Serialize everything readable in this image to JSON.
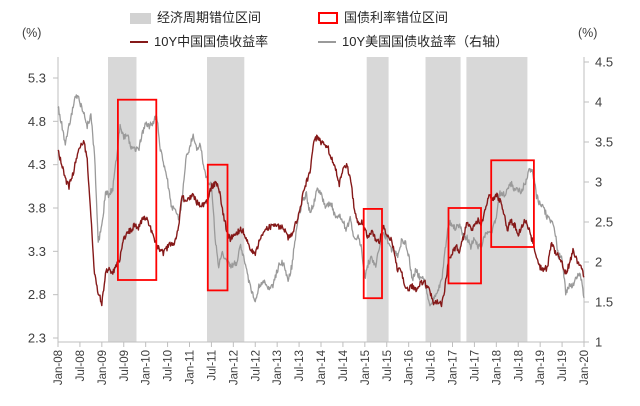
{
  "header": {
    "left_unit": "(%)",
    "right_unit": "(%)"
  },
  "legend": {
    "band_label": "经济周期错位区间",
    "box_label": "国债利率错位区间",
    "china_label": "10Y中国国债收益率",
    "us_label": "10Y美国国债收益率（右轴）"
  },
  "chart_data": {
    "type": "line",
    "title": "",
    "x_start": "Jan-08",
    "x_end": "Jan-20",
    "x_tick_labels": [
      "Jan-08",
      "Jul-08",
      "Jan-09",
      "Jul-09",
      "Jan-10",
      "Jul-10",
      "Jan-11",
      "Jul-11",
      "Jan-12",
      "Jul-12",
      "Jan-13",
      "Jul-13",
      "Jan-14",
      "Jul-14",
      "Jan-15",
      "Jul-15",
      "Jan-16",
      "Jul-16",
      "Jan-17",
      "Jul-17",
      "Jan-18",
      "Jul-18",
      "Jan-19",
      "Jul-19",
      "Jan-20"
    ],
    "months_per_tick": 6,
    "left_axis": {
      "unit": "(%)",
      "min": 2.3,
      "max": 5.3,
      "ticks": [
        5.3,
        4.8,
        4.3,
        3.8,
        3.3,
        2.8,
        2.3
      ]
    },
    "right_axis": {
      "unit": "(%)",
      "min": 1.0,
      "max": 4.5,
      "ticks": [
        4.5,
        4.0,
        3.5,
        3.0,
        2.5,
        2.0,
        1.5,
        1.0
      ]
    },
    "grid": false,
    "legend_position": "top",
    "series": [
      {
        "name": "10Y美国国债收益率（右轴）",
        "axis": "right",
        "color": "#9A9A9A",
        "width": 1.3,
        "monthly_values": [
          3.95,
          3.72,
          3.48,
          3.7,
          3.9,
          4.1,
          4.0,
          3.86,
          3.7,
          3.82,
          3.35,
          2.25,
          2.45,
          2.86,
          2.84,
          2.92,
          3.3,
          3.72,
          3.55,
          3.6,
          3.42,
          3.4,
          3.4,
          3.6,
          3.72,
          3.7,
          3.74,
          3.85,
          3.42,
          3.2,
          3.0,
          2.7,
          2.65,
          2.55,
          2.76,
          3.3,
          3.4,
          3.6,
          3.42,
          3.46,
          3.16,
          3.0,
          3.0,
          2.3,
          1.95,
          2.15,
          2.0,
          1.96,
          1.96,
          2.0,
          2.2,
          2.04,
          1.8,
          1.62,
          1.5,
          1.7,
          1.72,
          1.75,
          1.64,
          1.72,
          1.9,
          2.0,
          1.95,
          1.75,
          1.95,
          2.3,
          2.6,
          2.75,
          2.85,
          2.6,
          2.74,
          2.9,
          2.86,
          2.7,
          2.72,
          2.7,
          2.55,
          2.6,
          2.52,
          2.4,
          2.55,
          2.3,
          2.32,
          2.2,
          1.8,
          2.0,
          2.05,
          1.94,
          2.2,
          2.36,
          2.3,
          2.16,
          2.16,
          2.06,
          2.26,
          2.25,
          2.08,
          1.78,
          1.9,
          1.8,
          1.8,
          1.64,
          1.45,
          1.54,
          1.64,
          1.76,
          2.14,
          2.5,
          2.44,
          2.42,
          2.48,
          2.3,
          2.3,
          2.2,
          2.3,
          2.2,
          2.2,
          2.35,
          2.36,
          2.4,
          2.58,
          2.86,
          2.84,
          2.88,
          2.98,
          2.9,
          2.89,
          2.89,
          3.0,
          3.16,
          3.12,
          2.83,
          2.71,
          2.68,
          2.55,
          2.52,
          2.4,
          2.08,
          2.05,
          1.63,
          1.7,
          1.72,
          1.8,
          1.86,
          1.55
        ]
      },
      {
        "name": "10Y中国国债收益率",
        "axis": "left",
        "color": "#851919",
        "width": 1.4,
        "monthly_values": [
          4.45,
          4.32,
          4.12,
          4.05,
          4.18,
          4.35,
          4.52,
          4.58,
          4.35,
          3.72,
          3.05,
          2.82,
          2.7,
          3.05,
          3.1,
          3.05,
          3.15,
          3.22,
          3.45,
          3.52,
          3.55,
          3.6,
          3.58,
          3.65,
          3.68,
          3.62,
          3.48,
          3.38,
          3.3,
          3.28,
          3.35,
          3.38,
          3.4,
          3.6,
          3.95,
          3.85,
          3.92,
          3.95,
          3.86,
          3.84,
          3.83,
          3.88,
          4.05,
          4.08,
          4.05,
          3.78,
          3.58,
          3.44,
          3.48,
          3.52,
          3.55,
          3.52,
          3.4,
          3.3,
          3.28,
          3.4,
          3.52,
          3.56,
          3.58,
          3.58,
          3.6,
          3.58,
          3.55,
          3.45,
          3.48,
          3.62,
          3.72,
          3.95,
          4.1,
          4.22,
          4.58,
          4.62,
          4.55,
          4.52,
          4.48,
          4.38,
          4.25,
          4.08,
          4.25,
          4.28,
          4.18,
          3.82,
          3.62,
          3.65,
          3.55,
          3.45,
          3.55,
          3.42,
          3.4,
          3.6,
          3.48,
          3.45,
          3.32,
          3.08,
          3.08,
          2.86,
          2.86,
          2.9,
          2.86,
          2.92,
          2.96,
          2.9,
          2.8,
          2.7,
          2.72,
          2.68,
          2.9,
          3.2,
          3.3,
          3.35,
          3.3,
          3.46,
          3.65,
          3.55,
          3.58,
          3.65,
          3.62,
          3.8,
          3.95,
          3.9,
          3.95,
          3.88,
          3.75,
          3.55,
          3.65,
          3.6,
          3.5,
          3.6,
          3.65,
          3.55,
          3.4,
          3.25,
          3.12,
          3.1,
          3.1,
          3.4,
          3.3,
          3.25,
          3.15,
          3.05,
          3.15,
          3.3,
          3.2,
          3.15,
          3.0
        ]
      }
    ],
    "shaded_bands": {
      "label": "经济周期错位区间",
      "color": "#D8D8D8",
      "ranges_months": [
        [
          13.7,
          21.5
        ],
        [
          40.8,
          51.0
        ],
        [
          84.5,
          90.5
        ],
        [
          100.6,
          110.2
        ],
        [
          111.8,
          128.5
        ]
      ]
    },
    "red_boxes": {
      "label": "国债利率错位区间",
      "color": "#FE0202",
      "boxes_month_leftvalue": [
        {
          "x0": 16.4,
          "x1": 26.9,
          "v0": 2.97,
          "v1": 5.05
        },
        {
          "x0": 41.0,
          "x1": 46.4,
          "v0": 2.85,
          "v1": 4.3
        },
        {
          "x0": 83.7,
          "x1": 88.7,
          "v0": 2.76,
          "v1": 3.79
        },
        {
          "x0": 106.9,
          "x1": 115.8,
          "v0": 2.93,
          "v1": 3.8
        },
        {
          "x0": 118.6,
          "x1": 130.3,
          "v0": 3.35,
          "v1": 4.35
        }
      ]
    }
  }
}
